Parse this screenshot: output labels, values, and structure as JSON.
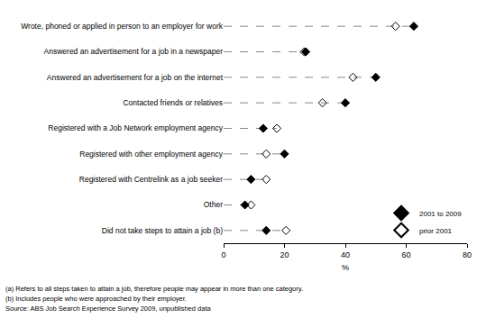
{
  "chart_data": {
    "type": "dot",
    "orientation": "horizontal",
    "categories": [
      "Wrote, phoned or applied in person to an employer for work",
      "Answered an advertisement for a job in a newspaper",
      "Answered an advertisement for a job on the internet",
      "Contacted friends or relatives",
      "Registered with a Job Network employment agency",
      "Registered with other employment agency",
      "Registered with Centrelink as a job seeker",
      "Other",
      "Did not take steps to attain a job (b)"
    ],
    "series": [
      {
        "name": "2001 to 2009",
        "color": "#000000",
        "marker": "diamond",
        "values": [
          62.5,
          27,
          50,
          40,
          13,
          20,
          9,
          7,
          14
        ]
      },
      {
        "name": "prior 2001",
        "color": "#000000",
        "marker": "diamond-open",
        "values": [
          56.5,
          26.5,
          42.5,
          32.5,
          17.5,
          14,
          14,
          9,
          20.5
        ]
      }
    ],
    "xlabel": "%",
    "xlim": [
      0,
      80
    ],
    "xticks": [
      0,
      20,
      40,
      60,
      80
    ],
    "grid": false,
    "line_style": "dash",
    "legend": "lower right",
    "annotations": [
      "(a) Refers to all steps taken to attain a job, therefore people may appear in more than one category.",
      "(b) Includes people who were approached by their employer.",
      "Source: ABS Job Search Experience Survey 2009, unpublished data"
    ]
  }
}
